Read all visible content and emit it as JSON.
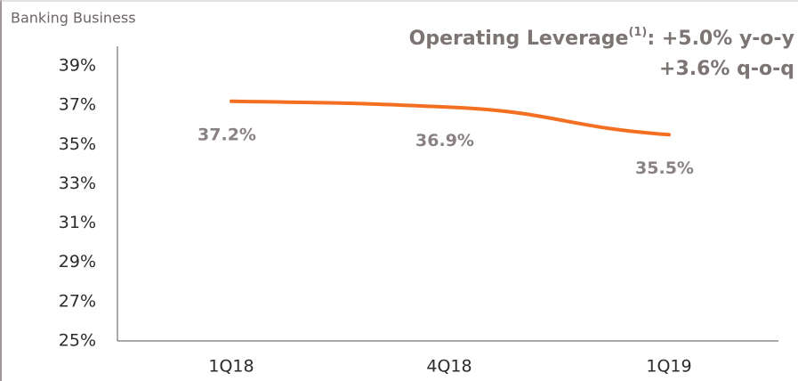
{
  "chart_data": {
    "type": "line",
    "title": "Banking Business",
    "annotation": [
      "Operating Leverage",
      "(1)",
      ": +5.0% y-o-y",
      "+3.6% q-o-q"
    ],
    "categories": [
      "1Q18",
      "4Q18",
      "1Q19"
    ],
    "series": [
      {
        "name": "Banking Business",
        "color": "#f36f21",
        "values": [
          37.2,
          36.9,
          35.5
        ],
        "value_labels": [
          "37.2%",
          "36.9%",
          "35.5%"
        ]
      }
    ],
    "ylim": [
      25,
      40
    ],
    "yticks": [
      {
        "value": 25,
        "label": "25%"
      },
      {
        "value": 27,
        "label": "27%"
      },
      {
        "value": 29,
        "label": "29%"
      },
      {
        "value": 31,
        "label": "31%"
      },
      {
        "value": 33,
        "label": "33%"
      },
      {
        "value": 35,
        "label": "35%"
      },
      {
        "value": 37,
        "label": "37%"
      },
      {
        "value": 39,
        "label": "39%"
      }
    ],
    "grid": false
  }
}
